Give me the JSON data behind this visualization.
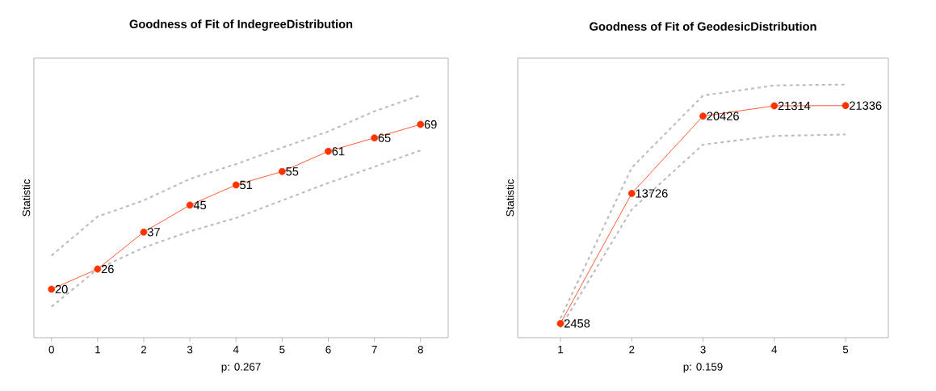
{
  "chart_data": [
    {
      "type": "line",
      "title": "Goodness of Fit of IndegreeDistribution",
      "xlabel": "p: 0.267",
      "ylabel": "Statistic",
      "x": [
        0,
        1,
        2,
        3,
        4,
        5,
        6,
        7,
        8
      ],
      "xlim": [
        -0.38,
        8.6
      ],
      "ylim": [
        5.6,
        88.7
      ],
      "xticks": [
        0,
        1,
        2,
        3,
        4,
        5,
        6,
        7,
        8
      ],
      "tick_labels": "x",
      "series": [
        {
          "color": "#bdbdbd",
          "line_style": "dashed",
          "marker": "none",
          "values": [
            30.0,
            41.6,
            46.4,
            52.8,
            57.2,
            62.1,
            66.9,
            72.9,
            77.7
          ]
        },
        {
          "color": "#bdbdbd",
          "line_style": "dashed",
          "marker": "none",
          "values": [
            14.8,
            26.0,
            32.4,
            37.2,
            41.2,
            46.4,
            51.6,
            56.4,
            61.3
          ]
        },
        {
          "color": "#ff3300",
          "line_style": "solid",
          "marker": "circle",
          "values": [
            20,
            26,
            37,
            45,
            51,
            55,
            61,
            65,
            69
          ],
          "value_labels": [
            "20",
            "26",
            "37",
            "45",
            "51",
            "55",
            "61",
            "65",
            "69"
          ]
        }
      ]
    },
    {
      "type": "line",
      "title": "Goodness of Fit of GeodesicDistribution",
      "xlabel": "p: 0.159",
      "ylabel": "Statistic",
      "x": [
        1,
        2,
        3,
        4,
        5
      ],
      "xlim": [
        0.4,
        5.6
      ],
      "ylim": [
        1226,
        25446
      ],
      "xticks": [
        1,
        2,
        3,
        4,
        5
      ],
      "tick_labels": "x",
      "series": [
        {
          "color": "#bdbdbd",
          "line_style": "dashed",
          "marker": "none",
          "values": [
            2900,
            15958,
            22208,
            23083,
            23158
          ]
        },
        {
          "color": "#bdbdbd",
          "line_style": "dashed",
          "marker": "none",
          "values": [
            2100,
            12333,
            17958,
            18708,
            18833
          ]
        },
        {
          "color": "#ff3300",
          "line_style": "solid",
          "marker": "circle",
          "values": [
            2458,
            13726,
            20426,
            21314,
            21336
          ],
          "value_labels": [
            "2458",
            "13726",
            "20426",
            "21314",
            "21336"
          ]
        }
      ]
    }
  ]
}
